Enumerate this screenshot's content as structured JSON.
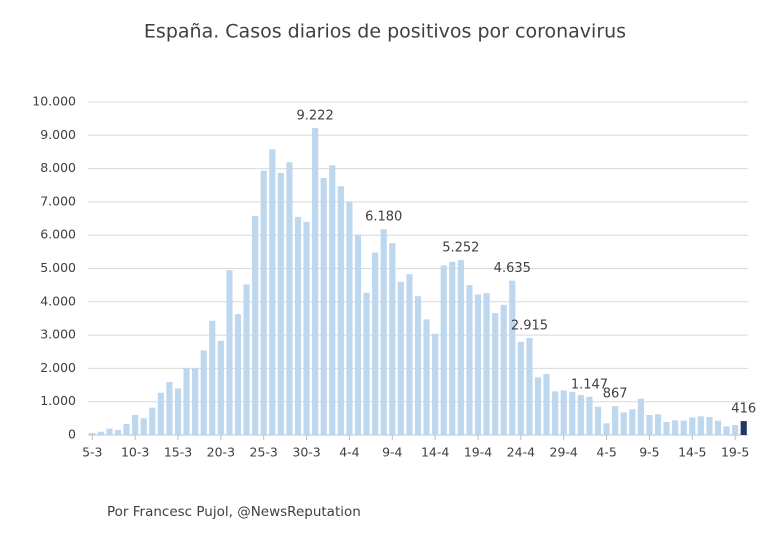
{
  "chart_data": {
    "type": "bar",
    "title": "España. Casos diarios de positivos por coronavirus",
    "footer": "Por Francesc Pujol, @NewsReputation",
    "categories": [
      "5-3",
      null,
      null,
      null,
      null,
      "10-3",
      null,
      null,
      null,
      null,
      "15-3",
      null,
      null,
      null,
      null,
      "20-3",
      null,
      null,
      null,
      null,
      "25-3",
      null,
      null,
      null,
      null,
      "30-3",
      null,
      null,
      null,
      null,
      "4-4",
      null,
      null,
      null,
      null,
      "9-4",
      null,
      null,
      null,
      null,
      "14-4",
      null,
      null,
      null,
      null,
      "19-4",
      null,
      null,
      null,
      null,
      "24-4",
      null,
      null,
      null,
      null,
      "29-4",
      null,
      null,
      null,
      null,
      "4-5",
      null,
      null,
      null,
      null,
      "9-5",
      null,
      null,
      null,
      null,
      "14-5",
      null,
      null,
      null,
      null,
      "19-5",
      null
    ],
    "values": [
      60,
      100,
      190,
      150,
      330,
      600,
      500,
      820,
      1270,
      1590,
      1400,
      2000,
      2000,
      2540,
      3430,
      2830,
      4950,
      3630,
      4520,
      6580,
      7940,
      8580,
      7870,
      8190,
      6550,
      6400,
      9222,
      7720,
      8100,
      7470,
      7000,
      6020,
      4270,
      5480,
      6180,
      5760,
      4600,
      4830,
      4170,
      3470,
      3040,
      5090,
      5200,
      5252,
      4500,
      4220,
      4260,
      3660,
      3910,
      4635,
      2800,
      2915,
      1730,
      1830,
      1310,
      1340,
      1300,
      1200,
      1147,
      850,
      350,
      867,
      680,
      770,
      1090,
      600,
      620,
      390,
      440,
      430,
      530,
      560,
      540,
      430,
      260,
      300,
      416
    ],
    "value_labels": [
      null,
      null,
      null,
      null,
      null,
      null,
      null,
      null,
      null,
      null,
      null,
      null,
      null,
      null,
      null,
      null,
      null,
      null,
      null,
      null,
      null,
      null,
      null,
      null,
      null,
      null,
      "9.222",
      null,
      null,
      null,
      null,
      null,
      null,
      null,
      "6.180",
      null,
      null,
      null,
      null,
      null,
      null,
      null,
      null,
      "5.252",
      null,
      null,
      null,
      null,
      null,
      "4.635",
      null,
      "2.915",
      null,
      null,
      null,
      null,
      null,
      null,
      "1.147",
      null,
      null,
      "867",
      null,
      null,
      null,
      null,
      null,
      null,
      null,
      null,
      null,
      null,
      null,
      null,
      null,
      null,
      "416"
    ],
    "colors": [
      "#bdd7ee",
      "#bdd7ee",
      "#bdd7ee",
      "#bdd7ee",
      "#bdd7ee",
      "#bdd7ee",
      "#bdd7ee",
      "#bdd7ee",
      "#bdd7ee",
      "#bdd7ee",
      "#bdd7ee",
      "#bdd7ee",
      "#bdd7ee",
      "#bdd7ee",
      "#bdd7ee",
      "#bdd7ee",
      "#bdd7ee",
      "#bdd7ee",
      "#bdd7ee",
      "#bdd7ee",
      "#bdd7ee",
      "#bdd7ee",
      "#bdd7ee",
      "#bdd7ee",
      "#bdd7ee",
      "#bdd7ee",
      "#bdd7ee",
      "#bdd7ee",
      "#bdd7ee",
      "#bdd7ee",
      "#bdd7ee",
      "#bdd7ee",
      "#bdd7ee",
      "#bdd7ee",
      "#bdd7ee",
      "#bdd7ee",
      "#bdd7ee",
      "#bdd7ee",
      "#bdd7ee",
      "#bdd7ee",
      "#bdd7ee",
      "#bdd7ee",
      "#bdd7ee",
      "#bdd7ee",
      "#bdd7ee",
      "#bdd7ee",
      "#bdd7ee",
      "#bdd7ee",
      "#bdd7ee",
      "#bdd7ee",
      "#bdd7ee",
      "#bdd7ee",
      "#bdd7ee",
      "#bdd7ee",
      "#bdd7ee",
      "#bdd7ee",
      "#bdd7ee",
      "#bdd7ee",
      "#bdd7ee",
      "#bdd7ee",
      "#bdd7ee",
      "#bdd7ee",
      "#bdd7ee",
      "#bdd7ee",
      "#bdd7ee",
      "#bdd7ee",
      "#bdd7ee",
      "#bdd7ee",
      "#bdd7ee",
      "#bdd7ee",
      "#bdd7ee",
      "#bdd7ee",
      "#bdd7ee",
      "#bdd7ee",
      "#bdd7ee",
      "#bdd7ee",
      "#203864"
    ],
    "ylim": [
      0,
      10000
    ],
    "yticks": [
      0,
      {
        "value": 1000,
        "label": "1.000"
      },
      {
        "value": 2000,
        "label": "2.000"
      },
      {
        "value": 3000,
        "label": "3.000"
      },
      {
        "value": 4000,
        "label": "4.000"
      },
      {
        "value": 5000,
        "label": "5.000"
      },
      {
        "value": 6000,
        "label": "6.000"
      },
      {
        "value": 7000,
        "label": "7.000"
      },
      {
        "value": 8000,
        "label": "8.000"
      },
      {
        "value": 9000,
        "label": "9.000"
      },
      {
        "value": 10000,
        "label": "10.000"
      }
    ],
    "grid": true
  }
}
